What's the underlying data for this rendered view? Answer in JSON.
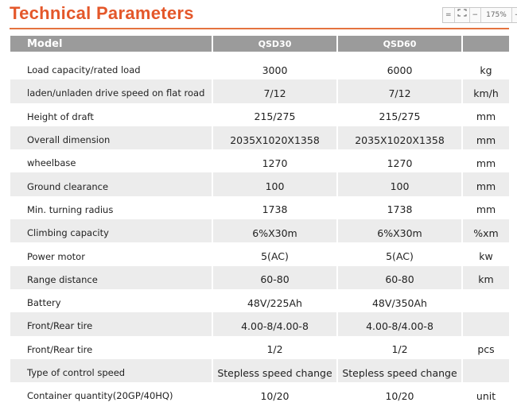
{
  "header": {
    "title": "Technical Parameters",
    "zoom": {
      "fit": "=",
      "minus": "−",
      "level": "175%",
      "plus": "+"
    }
  },
  "table": {
    "columns": [
      "Model",
      "QSD30",
      "QSD60"
    ],
    "rows": [
      [
        "Load capacity/rated load",
        "3000",
        "6000",
        "kg"
      ],
      [
        "laden/unladen drive speed on flat road",
        "7/12",
        "7/12",
        "km/h"
      ],
      [
        "Height of draft",
        "215/275",
        "215/275",
        "mm"
      ],
      [
        "Overall dimension",
        "2035X1020X1358",
        "2035X1020X1358",
        "mm"
      ],
      [
        "wheelbase",
        "1270",
        "1270",
        "mm"
      ],
      [
        "Ground clearance",
        "100",
        "100",
        "mm"
      ],
      [
        "Min. turning radius",
        "1738",
        "1738",
        "mm"
      ],
      [
        "Climbing capacity",
        "6%X30m",
        "6%X30m",
        "%xm"
      ],
      [
        "Power motor",
        "5(AC)",
        "5(AC)",
        "kw"
      ],
      [
        "Range distance",
        "60-80",
        "60-80",
        "km"
      ],
      [
        "Battery",
        "48V/225Ah",
        "48V/350Ah",
        null
      ],
      [
        "Front/Rear tire",
        "4.00-8/4.00-8",
        "4.00-8/4.00-8",
        null
      ],
      [
        "Front/Rear tire",
        "1/2",
        "1/2",
        "pcs"
      ],
      [
        "Type of control speed",
        "Stepless speed change",
        "Stepless speed change",
        null
      ],
      [
        "Container quantity(20GP/40HQ)",
        "10/20",
        "10/20",
        "unit"
      ]
    ]
  }
}
